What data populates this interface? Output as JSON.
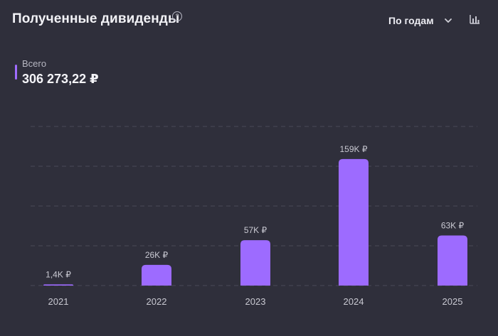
{
  "header": {
    "title": "Полученные дивиденды",
    "help_glyph": "?",
    "period_select": {
      "selected": "По годам"
    },
    "chart_type_icon": "bar-chart-icon"
  },
  "total": {
    "label": "Всего",
    "value": "306 273,22 ₽"
  },
  "colors": {
    "background": "#2f2f3b",
    "bar": "#9d6bff",
    "accent": "#a06cff",
    "grid": "#4a4a57",
    "label": "#c9c9d2"
  },
  "chart_data": {
    "type": "bar",
    "categories": [
      "2021",
      "2022",
      "2023",
      "2024",
      "2025"
    ],
    "values": [
      1400,
      26000,
      57000,
      159000,
      63000
    ],
    "data_labels": [
      "1,4K ₽",
      "26K ₽",
      "57K ₽",
      "159K ₽",
      "63K ₽"
    ],
    "title": "",
    "xlabel": "",
    "ylabel": "",
    "ylim": [
      0,
      200000
    ],
    "grid": true,
    "gridlines": [
      0,
      50000,
      100000,
      150000,
      200000
    ],
    "legend": "none"
  }
}
